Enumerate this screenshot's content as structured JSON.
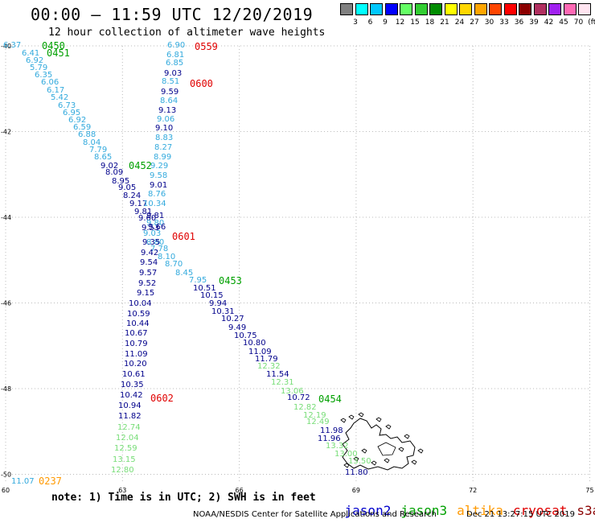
{
  "title": "00:00 – 11:59 UTC 12/20/2019",
  "subtitle": "12 hour collection of altimeter wave heights",
  "colorbar": {
    "colors": [
      "#808080",
      "#00ffff",
      "#00c8ff",
      "#0000ff",
      "#64ff64",
      "#32cd32",
      "#008c00",
      "#ffff00",
      "#ffd700",
      "#ffa500",
      "#ff4500",
      "#ff0000",
      "#8b0000",
      "#b03060",
      "#a020f0",
      "#ff69b4",
      "#ffe4f0"
    ],
    "labels": [
      "3",
      "6",
      "9",
      "12",
      "15",
      "18",
      "21",
      "24",
      "27",
      "30",
      "33",
      "36",
      "39",
      "42",
      "45",
      "70",
      "(ft)"
    ]
  },
  "axes": {
    "x_ticks": [
      "60",
      "63",
      "66",
      "69",
      "72",
      "75"
    ],
    "y_ticks": [
      "-40",
      "-42",
      "-44",
      "-46",
      "-48",
      "-50"
    ]
  },
  "satellite_colors": {
    "jason2": "#00008b",
    "jason3": "#00a000",
    "altika": "#ff9900",
    "cryosat": "#e00000",
    "s3a": "#8b0000",
    "s3a_light": "#33aadd",
    "jason3_light": "#77dd77"
  },
  "time_labels": [
    {
      "text": "0450",
      "sat": "jason3"
    },
    {
      "text": "0451",
      "sat": "jason3"
    },
    {
      "text": "0559",
      "sat": "cryosat"
    },
    {
      "text": "0600",
      "sat": "cryosat"
    },
    {
      "text": "0452",
      "sat": "jason3"
    },
    {
      "text": "0601",
      "sat": "cryosat"
    },
    {
      "text": "0453",
      "sat": "jason3"
    },
    {
      "text": "0602",
      "sat": "cryosat"
    },
    {
      "text": "0454",
      "sat": "jason3"
    },
    {
      "text": "0237",
      "sat": "altika"
    }
  ],
  "tracks": {
    "track_a": [
      "6.37",
      "6.41",
      "6.92",
      "5.79",
      "6.35",
      "6.06",
      "6.17",
      "5.42",
      "6.73",
      "6.95",
      "6.92",
      "6.59",
      "6.88",
      "8.04",
      "7.79",
      "8.65",
      "9.02",
      "8.09",
      "8.95",
      "9.05",
      "8.24",
      "9.17",
      "9.81",
      "9.60",
      "9.53",
      "9.03",
      "8.80",
      "7.78",
      "8.10",
      "8.70",
      "8.45",
      "7.95",
      "10.51",
      "10.15",
      "9.94",
      "10.31",
      "10.27",
      "9.49",
      "10.75",
      "10.80",
      "11.09",
      "11.79",
      "12.32",
      "11.54",
      "12.31",
      "13.06",
      "10.72",
      "12.82",
      "12.19",
      "12.49",
      "11.98",
      "11.96",
      "13.32",
      "13.00",
      "13.50",
      "11.80"
    ],
    "track_b": [
      "6.90",
      "6.81",
      "6.85",
      "9.03",
      "8.51",
      "9.59",
      "8.64",
      "9.13",
      "9.06",
      "9.10",
      "8.83",
      "8.27",
      "8.99",
      "9.29",
      "9.58",
      "9.01",
      "8.76",
      "10.34",
      "9.81",
      "9.80",
      "9.66",
      "9.35",
      "9.42",
      "9.54",
      "9.57",
      "9.52",
      "9.15",
      "10.04",
      "10.59",
      "10.44",
      "10.67",
      "10.79",
      "11.09",
      "10.20",
      "10.61",
      "10.35",
      "10.42",
      "10.94",
      "11.82",
      "12.74",
      "12.04",
      "12.59",
      "13.15",
      "12.80"
    ],
    "track_c": [
      "11.07"
    ]
  },
  "note": "note: 1) Time is in UTC; 2) SWH is in feet",
  "sat_legend": {
    "jason2": "jason2",
    "jason3": "jason3",
    "altika": "altika",
    "cryosat": "cryosat",
    "s3a": "s3a"
  },
  "footer_credit": "NOAA/NESDIS Center for Satellite Applications and Research",
  "footer_date": "Dec 21 13:27:15 UTC 2019"
}
